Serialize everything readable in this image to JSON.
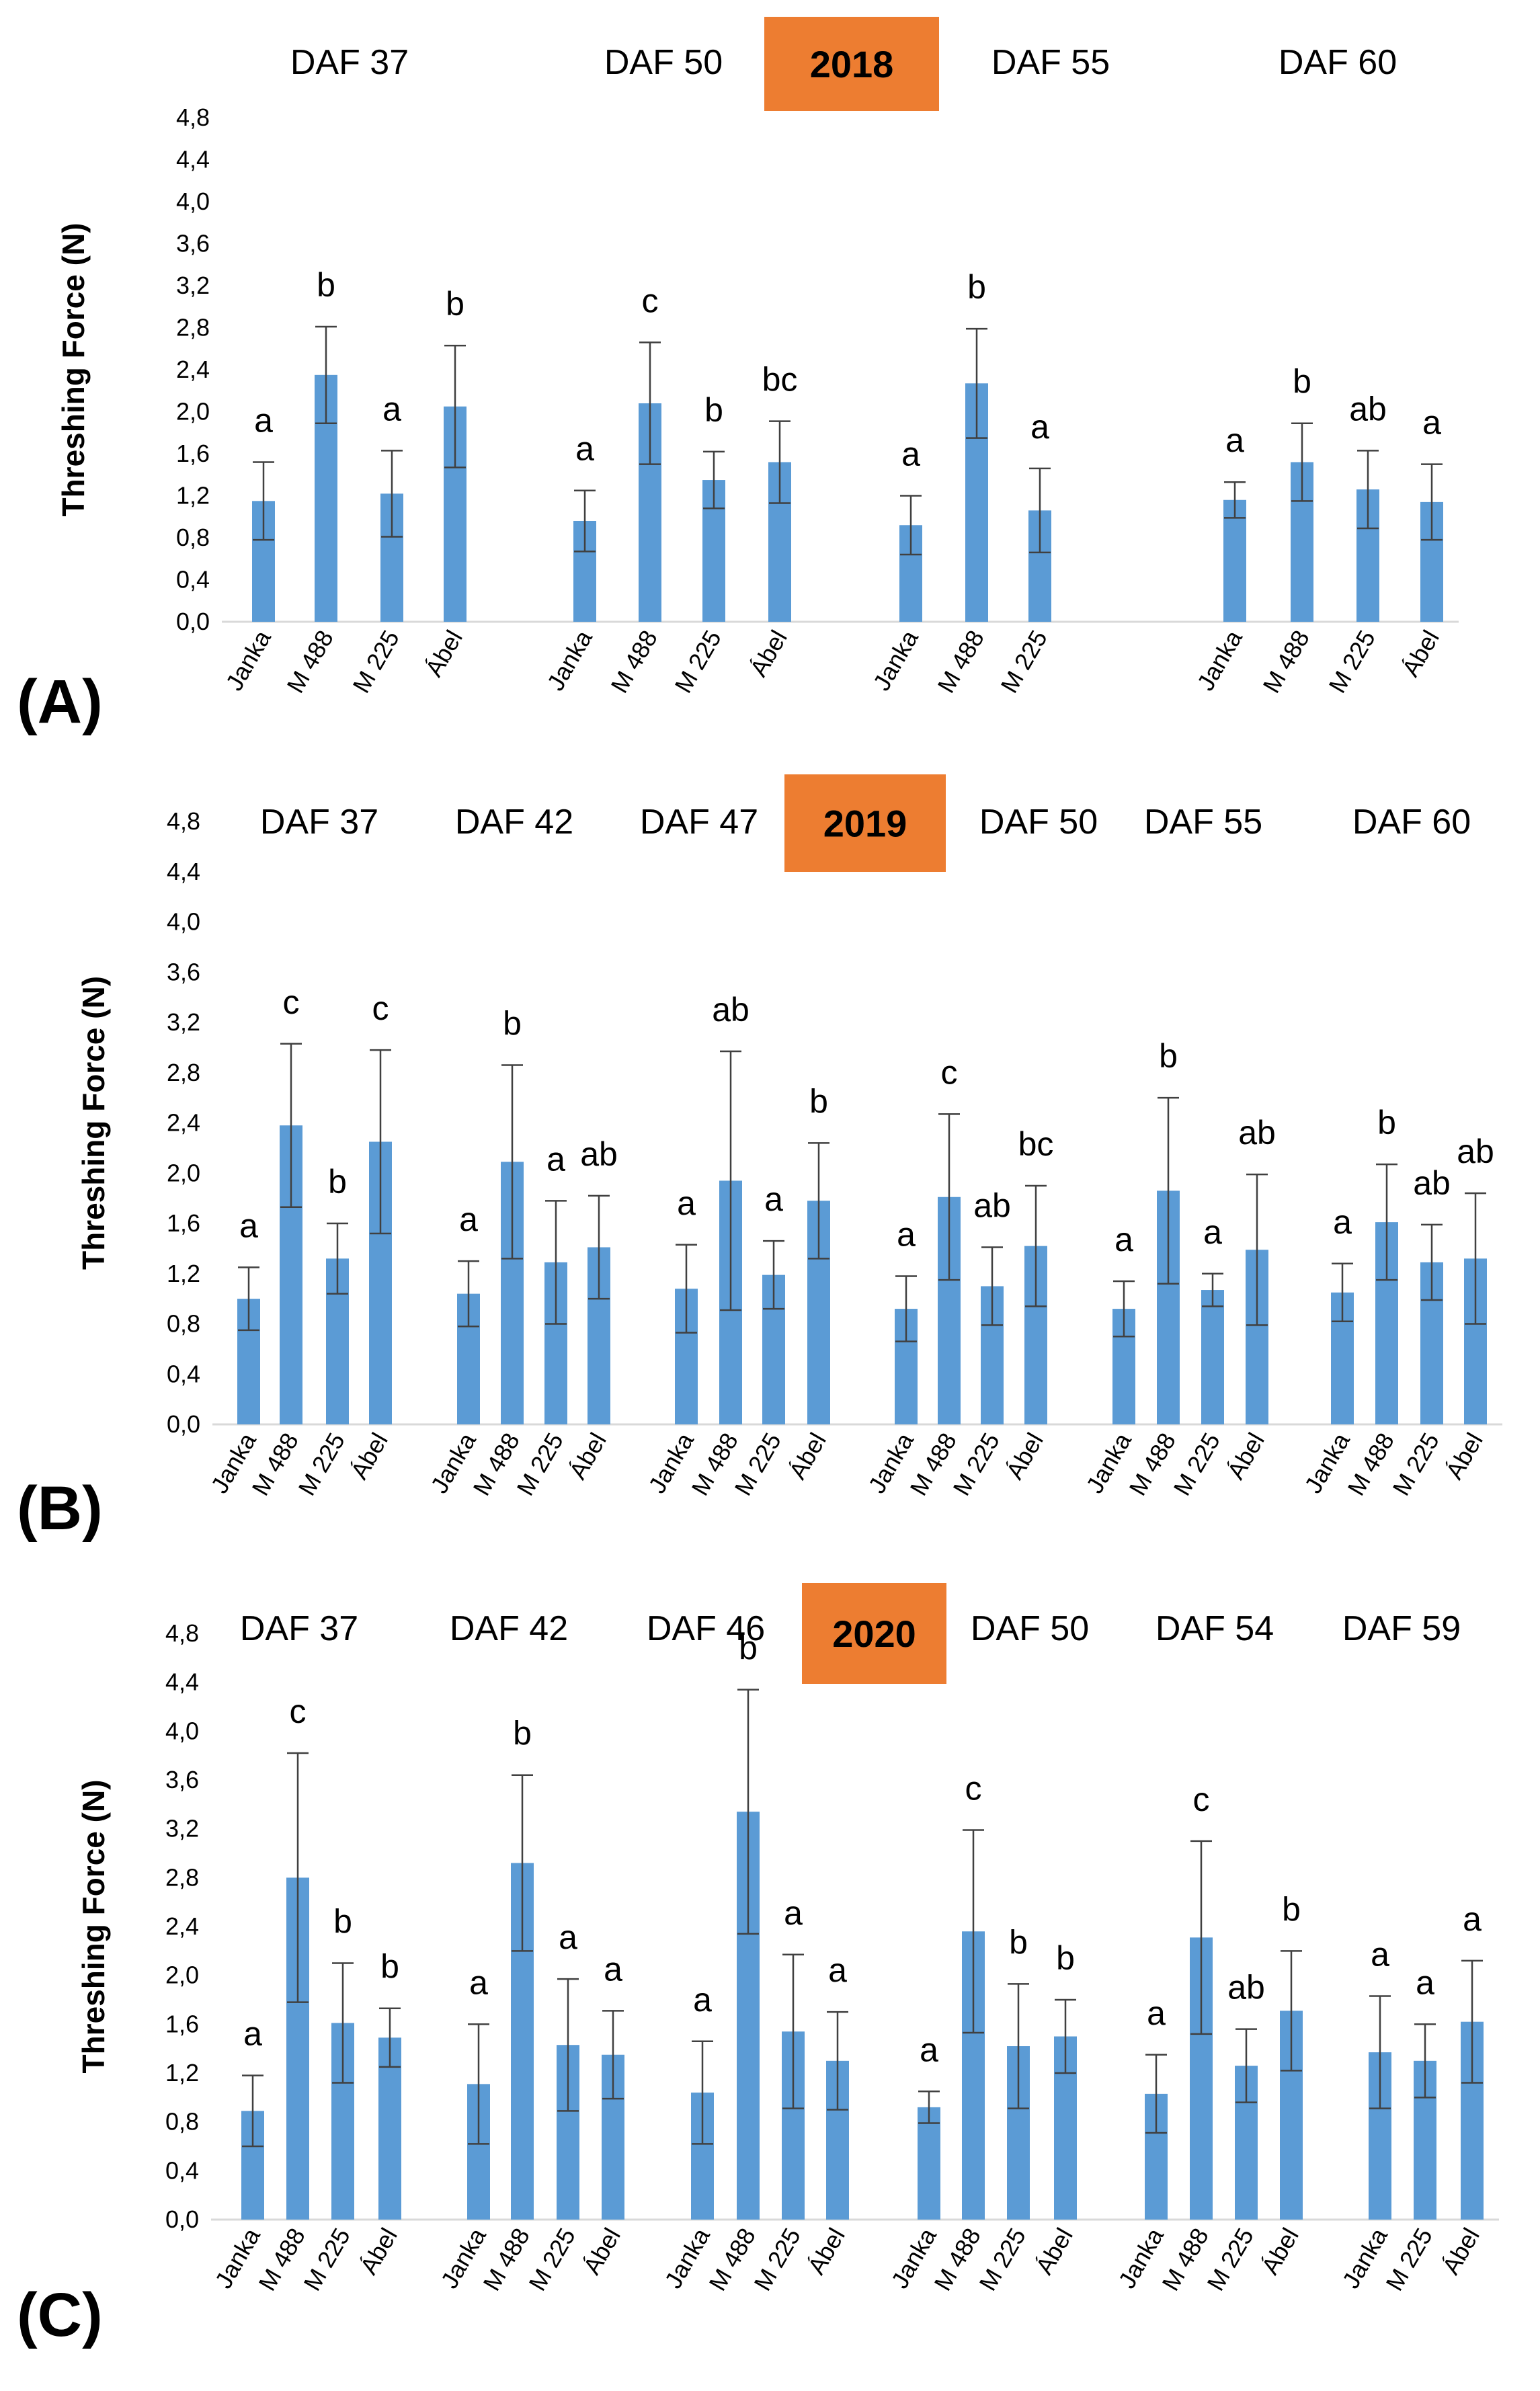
{
  "chart_data": [
    {
      "type": "bar",
      "panel_label": "(A)",
      "year": "2018",
      "ylabel": "Threshing Force (N)",
      "ylim": [
        0,
        4.8
      ],
      "yticks": [
        "0,0",
        "0,4",
        "0,8",
        "1,2",
        "1,6",
        "2,0",
        "2,4",
        "2,8",
        "3,2",
        "3,6",
        "4,0",
        "4,4",
        "4,8"
      ],
      "bar_color": "#5B9BD5",
      "year_badge_color": "#ED7D31",
      "groups": [
        {
          "label": "DAF 37",
          "categories": [
            "Janka",
            "M 488",
            "M 225",
            "Ábel"
          ],
          "values": [
            1.15,
            2.35,
            1.22,
            2.05
          ],
          "errors": [
            0.37,
            0.46,
            0.41,
            0.58
          ],
          "letters": [
            "a",
            "b",
            "a",
            "b"
          ]
        },
        {
          "label": "DAF 50",
          "categories": [
            "Janka",
            "M 488",
            "M 225",
            "Ábel"
          ],
          "values": [
            0.96,
            2.08,
            1.35,
            1.52
          ],
          "errors": [
            0.29,
            0.58,
            0.27,
            0.39
          ],
          "letters": [
            "a",
            "c",
            "b",
            "bc"
          ]
        },
        {
          "label": "DAF 55",
          "categories": [
            "Janka",
            "M 488",
            "M 225"
          ],
          "values": [
            0.92,
            2.27,
            1.06
          ],
          "errors": [
            0.28,
            0.52,
            0.4
          ],
          "letters": [
            "a",
            "b",
            "a"
          ]
        },
        {
          "label": "DAF 60",
          "categories": [
            "Janka",
            "M 488",
            "M 225",
            "Ábel"
          ],
          "values": [
            1.16,
            1.52,
            1.26,
            1.14
          ],
          "errors": [
            0.17,
            0.37,
            0.37,
            0.36
          ],
          "letters": [
            "a",
            "b",
            "ab",
            "a"
          ]
        }
      ]
    },
    {
      "type": "bar",
      "panel_label": "(B)",
      "year": "2019",
      "ylabel": "Threshing Force (N)",
      "ylim": [
        0,
        4.8
      ],
      "yticks": [
        "0,0",
        "0,4",
        "0,8",
        "1,2",
        "1,6",
        "2,0",
        "2,4",
        "2,8",
        "3,2",
        "3,6",
        "4,0",
        "4,4",
        "4,8"
      ],
      "bar_color": "#5B9BD5",
      "year_badge_color": "#ED7D31",
      "groups": [
        {
          "label": "DAF 37",
          "categories": [
            "Janka",
            "M 488",
            "M 225",
            "Ábel"
          ],
          "values": [
            1.0,
            2.38,
            1.32,
            2.25
          ],
          "errors": [
            0.25,
            0.65,
            0.28,
            0.73
          ],
          "letters": [
            "a",
            "c",
            "b",
            "c"
          ]
        },
        {
          "label": "DAF 42",
          "categories": [
            "Janka",
            "M 488",
            "M 225",
            "Ábel"
          ],
          "values": [
            1.04,
            2.09,
            1.29,
            1.41
          ],
          "errors": [
            0.26,
            0.77,
            0.49,
            0.41
          ],
          "letters": [
            "a",
            "b",
            "a",
            "ab"
          ]
        },
        {
          "label": "DAF 47",
          "categories": [
            "Janka",
            "M 488",
            "M 225",
            "Ábel"
          ],
          "values": [
            1.08,
            1.94,
            1.19,
            1.78
          ],
          "errors": [
            0.35,
            1.03,
            0.27,
            0.46
          ],
          "letters": [
            "a",
            "ab",
            "a",
            "b"
          ]
        },
        {
          "label": "DAF 50",
          "categories": [
            "Janka",
            "M 488",
            "M 225",
            "Ábel"
          ],
          "values": [
            0.92,
            1.81,
            1.1,
            1.42
          ],
          "errors": [
            0.26,
            0.66,
            0.31,
            0.48
          ],
          "letters": [
            "a",
            "c",
            "ab",
            "bc"
          ]
        },
        {
          "label": "DAF 55",
          "categories": [
            "Janka",
            "M 488",
            "M 225",
            "Ábel"
          ],
          "values": [
            0.92,
            1.86,
            1.07,
            1.39
          ],
          "errors": [
            0.22,
            0.74,
            0.13,
            0.6
          ],
          "letters": [
            "a",
            "b",
            "a",
            "ab"
          ]
        },
        {
          "label": "DAF 60",
          "categories": [
            "Janka",
            "M 488",
            "M 225",
            "Ábel"
          ],
          "values": [
            1.05,
            1.61,
            1.29,
            1.32
          ],
          "errors": [
            0.23,
            0.46,
            0.3,
            0.52
          ],
          "letters": [
            "a",
            "b",
            "ab",
            "ab"
          ]
        }
      ]
    },
    {
      "type": "bar",
      "panel_label": "(C)",
      "year": "2020",
      "ylabel": "Threshing Force (N)",
      "ylim": [
        0,
        4.8
      ],
      "yticks": [
        "0,0",
        "0,4",
        "0,8",
        "1,2",
        "1,6",
        "2,0",
        "2,4",
        "2,8",
        "3,2",
        "3,6",
        "4,0",
        "4,4",
        "4,8"
      ],
      "bar_color": "#5B9BD5",
      "year_badge_color": "#ED7D31",
      "groups": [
        {
          "label": "DAF 37",
          "categories": [
            "Janka",
            "M 488",
            "M 225",
            "Ábel"
          ],
          "values": [
            0.89,
            2.8,
            1.61,
            1.49
          ],
          "errors": [
            0.29,
            1.02,
            0.49,
            0.24
          ],
          "letters": [
            "a",
            "c",
            "b",
            "b"
          ]
        },
        {
          "label": "DAF 42",
          "categories": [
            "Janka",
            "M 488",
            "M 225",
            "Ábel"
          ],
          "values": [
            1.11,
            2.92,
            1.43,
            1.35
          ],
          "errors": [
            0.49,
            0.72,
            0.54,
            0.36
          ],
          "letters": [
            "a",
            "b",
            "a",
            "a"
          ]
        },
        {
          "label": "DAF 46",
          "categories": [
            "Janka",
            "M 488",
            "M 225",
            "Ábel"
          ],
          "values": [
            1.04,
            3.34,
            1.54,
            1.3
          ],
          "errors": [
            0.42,
            1.0,
            0.63,
            0.4
          ],
          "letters": [
            "a",
            "b",
            "a",
            "a"
          ]
        },
        {
          "label": "DAF 50",
          "categories": [
            "Janka",
            "M 488",
            "M 225",
            "Ábel"
          ],
          "values": [
            0.92,
            2.36,
            1.42,
            1.5
          ],
          "errors": [
            0.13,
            0.83,
            0.51,
            0.3
          ],
          "letters": [
            "a",
            "c",
            "b",
            "b"
          ]
        },
        {
          "label": "DAF 54",
          "categories": [
            "Janka",
            "M 488",
            "M 225",
            "Ábel"
          ],
          "values": [
            1.03,
            2.31,
            1.26,
            1.71
          ],
          "errors": [
            0.32,
            0.79,
            0.3,
            0.49
          ],
          "letters": [
            "a",
            "c",
            "ab",
            "b"
          ]
        },
        {
          "label": "DAF 59",
          "categories": [
            "Janka",
            "M 225",
            "Ábel"
          ],
          "values": [
            1.37,
            1.3,
            1.62
          ],
          "errors": [
            0.46,
            0.3,
            0.5
          ],
          "letters": [
            "a",
            "a",
            "a"
          ]
        }
      ]
    }
  ]
}
